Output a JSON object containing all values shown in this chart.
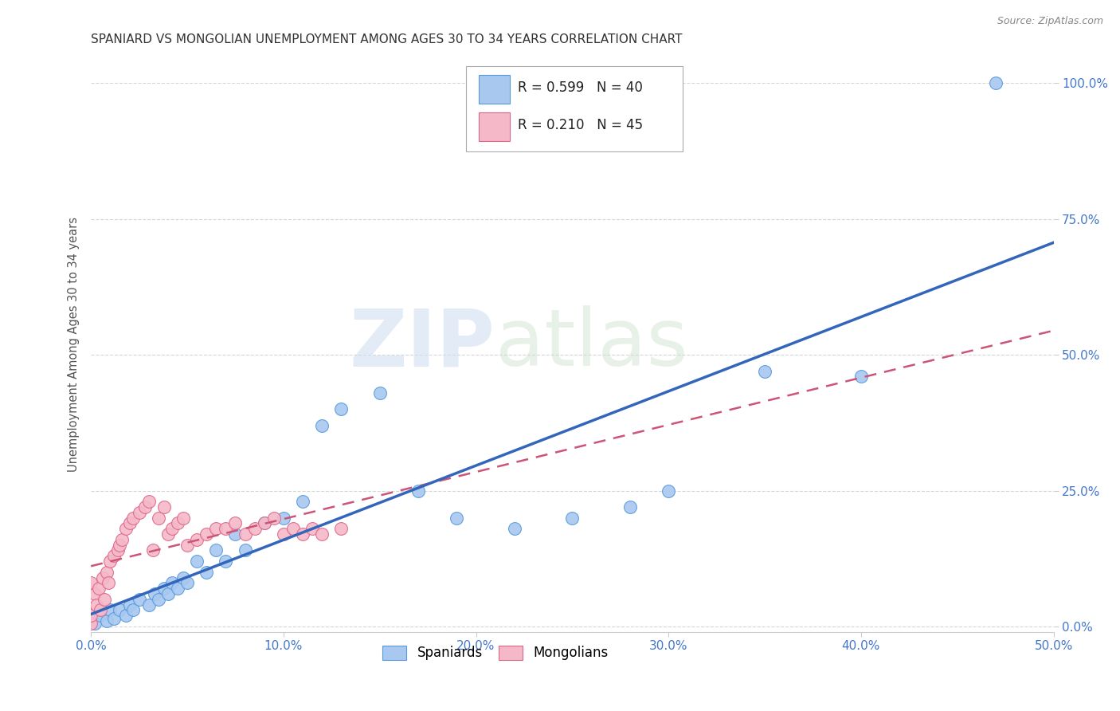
{
  "title": "SPANIARD VS MONGOLIAN UNEMPLOYMENT AMONG AGES 30 TO 34 YEARS CORRELATION CHART",
  "source": "Source: ZipAtlas.com",
  "ylabel": "Unemployment Among Ages 30 to 34 years",
  "xlim": [
    0.0,
    0.5
  ],
  "ylim": [
    -0.01,
    1.05
  ],
  "xtick_labels": [
    "0.0%",
    "10.0%",
    "20.0%",
    "30.0%",
    "40.0%",
    "50.0%"
  ],
  "xtick_vals": [
    0.0,
    0.1,
    0.2,
    0.3,
    0.4,
    0.5
  ],
  "ytick_labels": [
    "0.0%",
    "25.0%",
    "50.0%",
    "75.0%",
    "100.0%"
  ],
  "ytick_vals": [
    0.0,
    0.25,
    0.5,
    0.75,
    1.0
  ],
  "spaniards_color": "#a8c8f0",
  "mongolians_color": "#f5b8c8",
  "spaniards_edge_color": "#5599dd",
  "mongolians_edge_color": "#dd6688",
  "spaniards_line_color": "#3366bb",
  "mongolians_line_color": "#cc5577",
  "spaniards_x": [
    0.002,
    0.005,
    0.008,
    0.01,
    0.012,
    0.015,
    0.018,
    0.02,
    0.022,
    0.025,
    0.03,
    0.033,
    0.035,
    0.038,
    0.04,
    0.042,
    0.045,
    0.048,
    0.05,
    0.055,
    0.06,
    0.065,
    0.07,
    0.075,
    0.08,
    0.09,
    0.1,
    0.11,
    0.12,
    0.13,
    0.15,
    0.17,
    0.19,
    0.22,
    0.25,
    0.28,
    0.3,
    0.35,
    0.4,
    0.47
  ],
  "spaniards_y": [
    0.005,
    0.02,
    0.01,
    0.03,
    0.015,
    0.03,
    0.02,
    0.04,
    0.03,
    0.05,
    0.04,
    0.06,
    0.05,
    0.07,
    0.06,
    0.08,
    0.07,
    0.09,
    0.08,
    0.12,
    0.1,
    0.14,
    0.12,
    0.17,
    0.14,
    0.19,
    0.2,
    0.23,
    0.37,
    0.4,
    0.43,
    0.25,
    0.2,
    0.18,
    0.2,
    0.22,
    0.25,
    0.47,
    0.46,
    1.0
  ],
  "mongolians_x": [
    0.0,
    0.0,
    0.0,
    0.002,
    0.003,
    0.004,
    0.005,
    0.006,
    0.007,
    0.008,
    0.009,
    0.01,
    0.012,
    0.014,
    0.015,
    0.016,
    0.018,
    0.02,
    0.022,
    0.025,
    0.028,
    0.03,
    0.032,
    0.035,
    0.038,
    0.04,
    0.042,
    0.045,
    0.048,
    0.05,
    0.055,
    0.06,
    0.065,
    0.07,
    0.075,
    0.08,
    0.085,
    0.09,
    0.095,
    0.1,
    0.105,
    0.11,
    0.115,
    0.12,
    0.13
  ],
  "mongolians_y": [
    0.005,
    0.02,
    0.08,
    0.06,
    0.04,
    0.07,
    0.03,
    0.09,
    0.05,
    0.1,
    0.08,
    0.12,
    0.13,
    0.14,
    0.15,
    0.16,
    0.18,
    0.19,
    0.2,
    0.21,
    0.22,
    0.23,
    0.14,
    0.2,
    0.22,
    0.17,
    0.18,
    0.19,
    0.2,
    0.15,
    0.16,
    0.17,
    0.18,
    0.18,
    0.19,
    0.17,
    0.18,
    0.19,
    0.2,
    0.17,
    0.18,
    0.17,
    0.18,
    0.17,
    0.18
  ]
}
